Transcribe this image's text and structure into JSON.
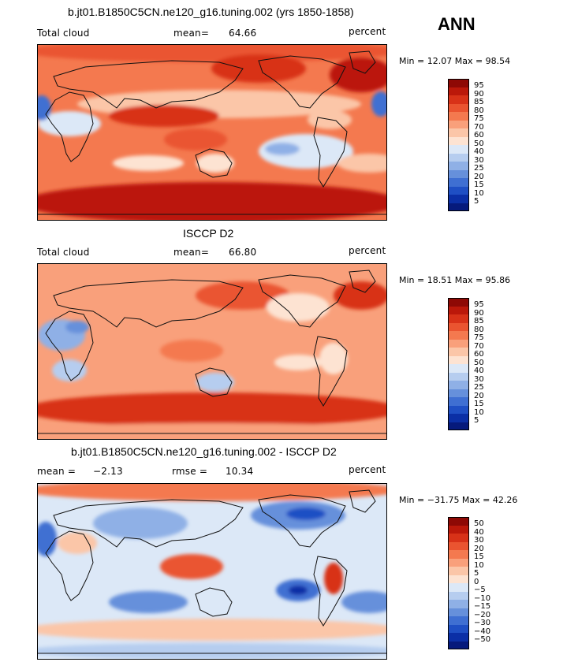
{
  "season": "ANN",
  "colors": {
    "warm": [
      "#fde3d2",
      "#fbc6a8",
      "#f9a07b",
      "#f4794f",
      "#ea5430",
      "#d83218",
      "#bb180a",
      "#8e0905"
    ],
    "neutral": "#fbf6f4",
    "cool": [
      "#dce8f7",
      "#b6cdef",
      "#8fb0e6",
      "#6690db",
      "#3f6fd2",
      "#1f4fc4",
      "#0b2fa6",
      "#061a7c"
    ],
    "coast": "#111111"
  },
  "colorbar_levels": [
    "95",
    "90",
    "85",
    "80",
    "75",
    "70",
    "60",
    "50",
    "40",
    "30",
    "25",
    "20",
    "15",
    "10",
    "5"
  ],
  "diff_levels": [
    "50",
    "40",
    "30",
    "20",
    "15",
    "10",
    "5",
    "0",
    "−5",
    "−10",
    "−15",
    "−20",
    "−30",
    "−40",
    "−50"
  ],
  "chart_data": [
    {
      "type": "heatmap",
      "title": "b.jt01.B1850C5CN.ne120_g16.tuning.002 (yrs 1850-1858)",
      "field": "Total cloud",
      "units": "percent",
      "mean_label": "mean=",
      "mean": "64.66",
      "minmax": "Min =   12.07 Max =   98.54",
      "min": 12.07,
      "max": 98.54,
      "contour_levels": [
        5,
        10,
        15,
        20,
        25,
        30,
        40,
        50,
        60,
        70,
        75,
        80,
        85,
        90,
        95
      ]
    },
    {
      "type": "heatmap",
      "title": "ISCCP D2",
      "field": "Total cloud",
      "units": "percent",
      "mean_label": "mean=",
      "mean": "66.80",
      "minmax": "Min =   18.51 Max =   95.86",
      "min": 18.51,
      "max": 95.86,
      "contour_levels": [
        5,
        10,
        15,
        20,
        25,
        30,
        40,
        50,
        60,
        70,
        75,
        80,
        85,
        90,
        95
      ]
    },
    {
      "type": "heatmap",
      "title": "b.jt01.B1850C5CN.ne120_g16.tuning.002 - ISCCP D2",
      "units": "percent",
      "mean_label": "mean =",
      "mean": "−2.13",
      "rmse_label": "rmse =",
      "rmse": "10.34",
      "minmax": "Min = −31.75 Max =   42.26",
      "min": -31.75,
      "max": 42.26,
      "contour_levels": [
        -50,
        -40,
        -30,
        -20,
        -15,
        -10,
        -5,
        0,
        5,
        10,
        15,
        20,
        30,
        40,
        50
      ]
    }
  ]
}
